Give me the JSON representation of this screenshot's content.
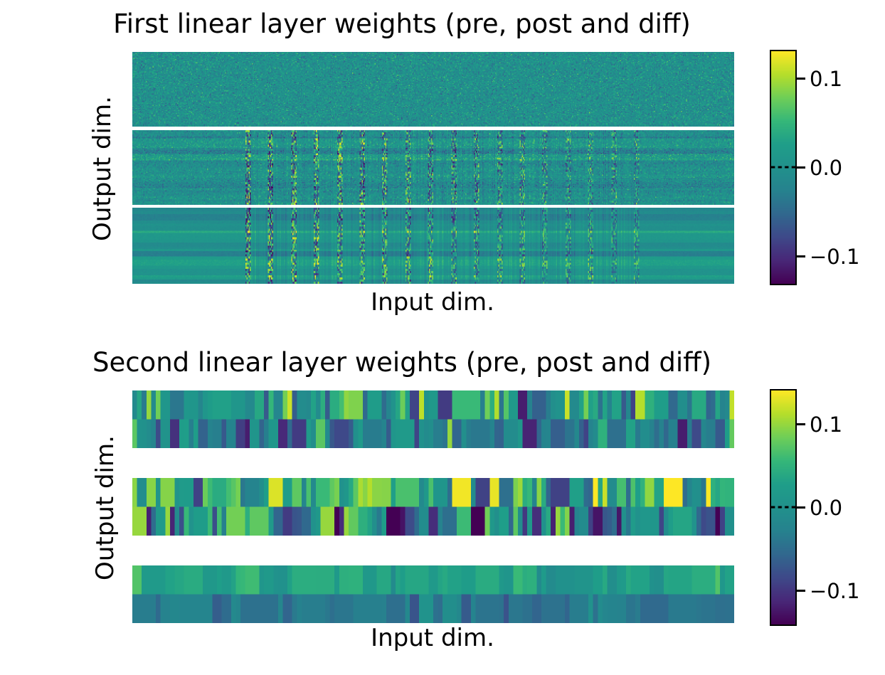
{
  "figure": {
    "background": "#ffffff",
    "text_color": "#000000"
  },
  "colormap": {
    "name": "viridis",
    "stops": [
      "#440154",
      "#482878",
      "#3e4989",
      "#31688e",
      "#26828e",
      "#21918c",
      "#1f9e89",
      "#35b779",
      "#6ece58",
      "#b5de2b",
      "#fde725"
    ]
  },
  "chart_data": [
    {
      "type": "heatmap",
      "title": "First linear layer weights (pre, post and diff)",
      "xlabel": "Input dim.",
      "ylabel": "Output dim.",
      "sections": [
        "pre",
        "post",
        "diff"
      ],
      "vmin": -0.13,
      "vmax": 0.13,
      "colorbar": {
        "ticks": [
          0.1,
          0.0,
          -0.1
        ],
        "tick_labels": [
          "0.1",
          "0.0",
          "−0.1"
        ],
        "zero_line": "dashed-black"
      },
      "gen": {
        "band": {
          "start_frac": 0.188,
          "end_frac": 0.842,
          "count": 18,
          "width_cols": 5,
          "group_rows": 2,
          "col_noise_std": 0.009,
          "taper_end": 0.55
        },
        "sections": [
          {
            "name": "pre",
            "cols": 564,
            "rows": 72,
            "seed": 7,
            "noise_std": 0.021,
            "stripe_std": 0,
            "stripe_run": [
              2,
              5
            ],
            "has_bands": false,
            "band_amp": 0
          },
          {
            "name": "post",
            "cols": 564,
            "rows": 72,
            "seed": 13,
            "noise_std": 0.018,
            "stripe_std": 0.014,
            "stripe_run": [
              2,
              5
            ],
            "has_bands": true,
            "band_amp": 0.105
          },
          {
            "name": "diff",
            "cols": 564,
            "rows": 72,
            "seed": 29,
            "noise_std": 0.003,
            "stripe_std": 0.02,
            "stripe_run": [
              2,
              6
            ],
            "has_bands": true,
            "band_amp": 0.105
          }
        ]
      }
    },
    {
      "type": "heatmap",
      "title": "Second linear layer weights (pre, post and diff)",
      "xlabel": "Input dim.",
      "ylabel": "Output dim.",
      "sections": [
        "pre",
        "post",
        "diff"
      ],
      "vmin": -0.14,
      "vmax": 0.14,
      "colorbar": {
        "ticks": [
          0.1,
          0.0,
          -0.1
        ],
        "tick_labels": [
          "0.1",
          "0.0",
          "−0.1"
        ],
        "zero_line": "dashed-black"
      },
      "gen": {
        "cols": 128,
        "sections": [
          {
            "name": "pre",
            "rows": [
              {
                "seed": 101,
                "mean": 0.015,
                "std": 0.055,
                "min": -0.12,
                "max": 0.12,
                "run_p": 0.35
              },
              {
                "seed": 102,
                "mean": -0.02,
                "std": 0.05,
                "min": -0.12,
                "max": 0.1,
                "run_p": 0.35
              }
            ]
          },
          {
            "name": "post",
            "rows": [
              {
                "seed": 203,
                "mean": 0.04,
                "std": 0.065,
                "min": -0.09,
                "max": 0.14,
                "run_p": 0.3
              },
              {
                "seed": 204,
                "mean": -0.035,
                "std": 0.07,
                "min": -0.14,
                "max": 0.1,
                "run_p": 0.3
              }
            ]
          },
          {
            "name": "diff",
            "rows": [
              {
                "seed": 305,
                "mean": 0.028,
                "std": 0.02,
                "min": -0.012,
                "max": 0.07,
                "run_p": 0.45
              },
              {
                "seed": 306,
                "mean": -0.038,
                "std": 0.016,
                "min": -0.075,
                "max": 0.004,
                "run_p": 0.45
              }
            ]
          }
        ]
      }
    }
  ]
}
